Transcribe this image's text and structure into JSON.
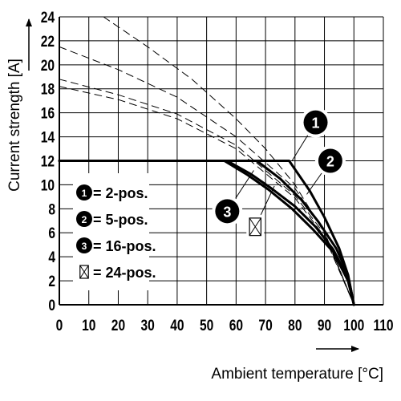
{
  "chart_data": {
    "type": "line",
    "title": "",
    "xlabel": "Ambient temperature [°C]",
    "ylabel": "Current strength [A]",
    "xlim": [
      0,
      110
    ],
    "ylim": [
      0,
      24
    ],
    "x_ticks": [
      "0",
      "10",
      "20",
      "30",
      "40",
      "50",
      "60",
      "70",
      "80",
      "90",
      "100",
      "110"
    ],
    "y_ticks": [
      "0",
      "2",
      "4",
      "6",
      "8",
      "10",
      "12",
      "14",
      "16",
      "18",
      "20",
      "22",
      "24"
    ],
    "grid": true,
    "legend_position": "left-middle",
    "legend": [
      {
        "marker": "1",
        "label": "= 2-pos."
      },
      {
        "marker": "2",
        "label": "= 5-pos."
      },
      {
        "marker": "3",
        "label": "= 16-pos."
      },
      {
        "marker": "24-pos-box",
        "label": "= 24-pos."
      }
    ],
    "series": [
      {
        "marker": "1",
        "style": "solid",
        "x": [
          0,
          78,
          85,
          90,
          95,
          98,
          100
        ],
        "y": [
          12,
          12,
          9.5,
          7.3,
          4.7,
          2.5,
          0
        ]
      },
      {
        "marker": "2",
        "style": "solid",
        "x": [
          0,
          67,
          75,
          82,
          88,
          94,
          98,
          100
        ],
        "y": [
          12,
          12,
          10.5,
          8.8,
          6.9,
          4.7,
          2.5,
          0
        ]
      },
      {
        "marker": "3",
        "style": "solid",
        "x": [
          0,
          57,
          65,
          72,
          80,
          87,
          93,
          98,
          100
        ],
        "y": [
          12,
          12,
          10.9,
          9.7,
          8.2,
          6.5,
          4.6,
          2.2,
          0
        ]
      },
      {
        "marker": "24-pos-box",
        "style": "solid",
        "x": [
          0,
          56,
          64,
          71,
          79,
          86,
          93,
          98,
          100
        ],
        "y": [
          12,
          12,
          10.8,
          9.6,
          8.0,
          6.3,
          4.4,
          2.0,
          0
        ]
      },
      {
        "marker": "1",
        "style": "dashed",
        "x": [
          15,
          30,
          45,
          60,
          70,
          80,
          90,
          100
        ],
        "y": [
          24,
          21.5,
          18.8,
          15.5,
          13.0,
          10.0,
          6.0,
          0
        ]
      },
      {
        "marker": "2",
        "style": "dashed",
        "x": [
          0,
          20,
          40,
          60,
          80,
          90,
          100
        ],
        "y": [
          21.5,
          19.6,
          17.3,
          14.0,
          9.7,
          6.1,
          0
        ]
      },
      {
        "marker": "3",
        "style": "dashed",
        "x": [
          0,
          20,
          40,
          60,
          80,
          90,
          100
        ],
        "y": [
          18.8,
          17.5,
          15.9,
          13.3,
          9.1,
          5.9,
          0
        ]
      },
      {
        "marker": "24-pos-box",
        "style": "dashed",
        "x": [
          0,
          20,
          40,
          60,
          80,
          90,
          100
        ],
        "y": [
          18.2,
          17.1,
          15.5,
          13.0,
          8.9,
          5.7,
          0
        ]
      }
    ],
    "annotations": [
      {
        "marker": "1",
        "x": 87,
        "y": 15.2
      },
      {
        "marker": "2",
        "x": 92,
        "y": 12.0
      },
      {
        "marker": "3",
        "x": 57,
        "y": 7.8
      },
      {
        "marker": "24-pos-box",
        "x": 66.5,
        "y": 6.5
      }
    ]
  }
}
